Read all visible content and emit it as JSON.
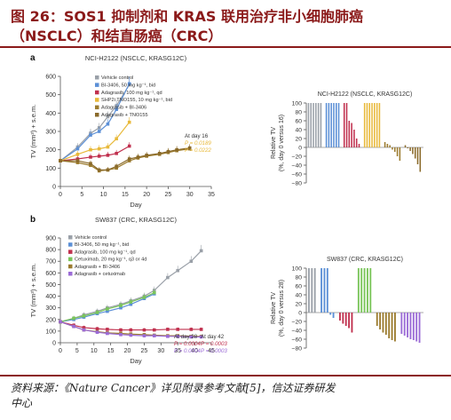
{
  "header": {
    "title_line1": "图 26：SOS1 抑制剂和 KRAS 联用治疗非小细胞肺癌",
    "title_line2": "（NSCLC）和结直肠癌（CRC）"
  },
  "source": {
    "line1": "资料来源：《Nature Cancer》详见附录参考文献[5]，信达证券研发",
    "line2": "中心"
  },
  "colors": {
    "title": "#8b1a1a",
    "vehicle": "#9aa0a8",
    "bi3406": "#5b8fd6",
    "adagrasib": "#c0304e",
    "shp2_or_cetux": "#e8b93a",
    "cetuximab": "#7ac55a",
    "adag_bi3406": "#9b7b2e",
    "adag_tno155": "#8a6a2a",
    "adag_cetux": "#9b6bd6"
  },
  "chart_data": [
    {
      "panel_label": "a",
      "type": "line",
      "title": "NCI-H2122 (NSCLC, KRASG12C)",
      "xlabel": "Day",
      "ylabel": "TV (mm³) + s.e.m.",
      "xlim": [
        0,
        35
      ],
      "ylim": [
        0,
        600
      ],
      "xticks": [
        "0",
        "5",
        "10",
        "15",
        "20",
        "25",
        "30",
        "35"
      ],
      "yticks": [
        "0",
        "100",
        "200",
        "300",
        "400",
        "500",
        "600"
      ],
      "legend_position": "top",
      "series": [
        {
          "name": "Vehicle control",
          "x": [
            0,
            4,
            7,
            9,
            11,
            13,
            16
          ],
          "y": [
            140,
            215,
            290,
            320,
            380,
            440,
            555
          ]
        },
        {
          "name": "BI-3406, 50 mg kg⁻¹, bid",
          "x": [
            0,
            4,
            7,
            9,
            11,
            13,
            16
          ],
          "y": [
            140,
            205,
            280,
            300,
            340,
            420,
            560
          ]
        },
        {
          "name": "Adagrasib, 100 mg kg⁻¹, qd",
          "x": [
            0,
            4,
            7,
            9,
            11,
            13,
            16
          ],
          "y": [
            140,
            150,
            160,
            165,
            170,
            180,
            220
          ]
        },
        {
          "name": "SHP2i TNO155, 10 mg kg⁻¹, bid",
          "x": [
            0,
            4,
            7,
            9,
            11,
            13,
            16
          ],
          "y": [
            140,
            175,
            200,
            205,
            215,
            260,
            350
          ]
        },
        {
          "name": "Adagrasib + BI-3406",
          "x": [
            0,
            4,
            7,
            9,
            11,
            13,
            16,
            18,
            20,
            23,
            25,
            27,
            30
          ],
          "y": [
            140,
            130,
            115,
            85,
            90,
            100,
            140,
            155,
            165,
            175,
            185,
            195,
            205
          ]
        },
        {
          "name": "Adagrasib + TNO155",
          "x": [
            0,
            4,
            7,
            9,
            11,
            13,
            16,
            18,
            20,
            23,
            25,
            27,
            30
          ],
          "y": [
            140,
            140,
            125,
            90,
            90,
            110,
            150,
            160,
            170,
            180,
            190,
            200,
            210
          ]
        }
      ],
      "annotations": [
        "At day 16",
        "P = 0.0189",
        "P = 0.0222"
      ]
    },
    {
      "panel_label": "",
      "type": "bar",
      "title": "NCI-H2122 (NSCLC, KRASG12C)",
      "ylabel": "Relative TV (%, day 0 versus 16)",
      "ylim": [
        -80,
        100
      ],
      "yticks": [
        "100",
        "80",
        "60",
        "40",
        "20",
        "0",
        "−20",
        "−40",
        "−60",
        "−80"
      ],
      "series": [
        {
          "name": "Vehicle control",
          "values": [
            100,
            100,
            100,
            100,
            100,
            100
          ]
        },
        {
          "name": "BI-3406, 50 mg kg⁻¹, bid",
          "values": [
            100,
            100,
            100,
            100,
            100,
            100
          ]
        },
        {
          "name": "Adagrasib, 100 mg kg⁻¹, qd",
          "values": [
            100,
            100,
            60,
            55,
            40,
            20,
            8
          ]
        },
        {
          "name": "SHP2i TNO155, 10 mg kg⁻¹, bid",
          "values": [
            100,
            100,
            100,
            100,
            100,
            100,
            100
          ]
        },
        {
          "name": "Adagrasib + BI-3406",
          "values": [
            12,
            8,
            5,
            -5,
            -10,
            -20,
            -30
          ]
        },
        {
          "name": "Adagrasib + TNO155",
          "values": [
            5,
            -2,
            -8,
            -15,
            -25,
            -38,
            -55
          ]
        }
      ]
    },
    {
      "panel_label": "b",
      "type": "line",
      "title": "SW837 (CRC, KRASG12C)",
      "xlabel": "Day",
      "ylabel": "TV (mm³) + s.e.m.",
      "xlim": [
        0,
        45
      ],
      "ylim": [
        0,
        900
      ],
      "xticks": [
        "0",
        "5",
        "10",
        "15",
        "20",
        "25",
        "30",
        "35",
        "40",
        "45"
      ],
      "yticks": [
        "0",
        "100",
        "200",
        "300",
        "400",
        "500",
        "600",
        "700",
        "800",
        "900"
      ],
      "legend_position": "top-left",
      "series": [
        {
          "name": "Vehicle control",
          "x": [
            0,
            4,
            7,
            11,
            14,
            18,
            21,
            25,
            28,
            32,
            35,
            39,
            42
          ],
          "y": [
            180,
            210,
            240,
            270,
            300,
            330,
            360,
            400,
            450,
            560,
            620,
            700,
            790
          ]
        },
        {
          "name": "BI-3406, 50 mg kg⁻¹, bid",
          "x": [
            0,
            4,
            7,
            11,
            14,
            18,
            21,
            25,
            28
          ],
          "y": [
            180,
            200,
            220,
            250,
            270,
            300,
            330,
            380,
            420
          ]
        },
        {
          "name": "Adagrasib, 100 mg kg⁻¹, qd",
          "x": [
            0,
            4,
            7,
            11,
            14,
            18,
            21,
            25,
            28,
            32,
            35,
            39,
            42
          ],
          "y": [
            180,
            150,
            130,
            120,
            115,
            110,
            110,
            110,
            110,
            115,
            115,
            115,
            115
          ]
        },
        {
          "name": "Cetuximab, 20 mg kg⁻¹, q3 or 4d",
          "x": [
            0,
            4,
            7,
            11,
            14,
            18,
            21,
            25,
            28
          ],
          "y": [
            180,
            210,
            230,
            260,
            290,
            320,
            350,
            390,
            430
          ]
        },
        {
          "name": "Adagrasib + BI-3406",
          "x": [
            0,
            4,
            7,
            11,
            14,
            18,
            21,
            25,
            28,
            32,
            35,
            39,
            42
          ],
          "y": [
            180,
            140,
            110,
            95,
            85,
            80,
            75,
            70,
            65,
            60,
            60,
            55,
            55
          ]
        },
        {
          "name": "Adagrasib + cetuximab",
          "x": [
            0,
            4,
            7,
            11,
            14,
            18,
            21,
            25,
            28,
            32,
            35,
            39,
            42
          ],
          "y": [
            180,
            140,
            110,
            90,
            80,
            70,
            65,
            60,
            60,
            55,
            55,
            50,
            50
          ]
        }
      ],
      "annotations": [
        "At day 28",
        "At day 42",
        "P = 0.0004",
        "P = 0.0003",
        "P = 0.0004",
        "P = 0.0003"
      ]
    },
    {
      "panel_label": "",
      "type": "bar",
      "title": "SW837 (CRC, KRASG12C)",
      "ylabel": "Relative TV (%, day 0 versus 28)",
      "ylim": [
        -80,
        100
      ],
      "yticks": [
        "100",
        "80",
        "60",
        "40",
        "20",
        "0",
        "−20",
        "−40",
        "−60",
        "−80"
      ],
      "series": [
        {
          "name": "Vehicle control",
          "values": [
            100,
            100,
            100
          ]
        },
        {
          "name": "BI-3406, 50 mg kg⁻¹, bid",
          "values": [
            100,
            100,
            100,
            -5,
            -12
          ]
        },
        {
          "name": "Adagrasib, 100 mg kg⁻¹, qd",
          "values": [
            -18,
            -25,
            -30,
            -35,
            -45
          ]
        },
        {
          "name": "Cetuximab, 20 mg kg⁻¹, q3 or 4d",
          "values": [
            100,
            100,
            100,
            100,
            100
          ]
        },
        {
          "name": "Adagrasib + BI-3406",
          "values": [
            -30,
            -38,
            -45,
            -50,
            -58,
            -62,
            -65
          ]
        },
        {
          "name": "Adagrasib + cetuximab",
          "values": [
            -48,
            -52,
            -56,
            -60,
            -62,
            -65,
            -68
          ]
        }
      ]
    }
  ]
}
